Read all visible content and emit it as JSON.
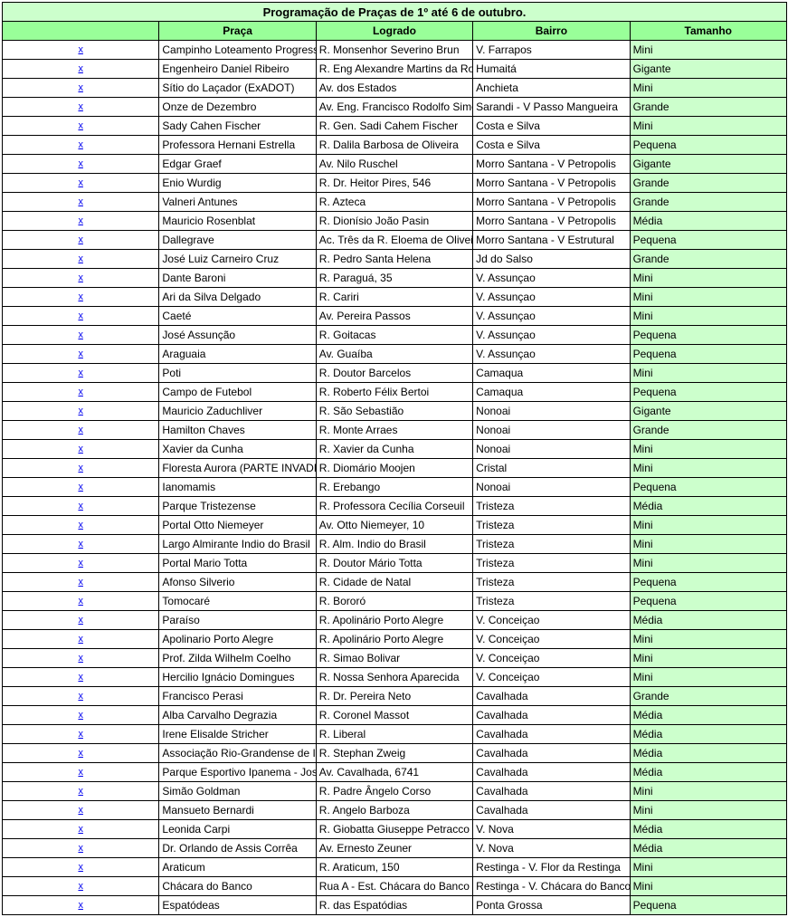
{
  "title": "Programação de Praças de 1º até 6 de outubro.",
  "columns": {
    "x": "",
    "praca": "Praça",
    "logrado": "Logrado",
    "bairro": "Bairro",
    "tamanho": "Tamanho"
  },
  "x_marker": "x",
  "colors": {
    "title_bg": "#ccffcc",
    "header_bg": "#99ff99",
    "tamanho_bg": "#ccffcc",
    "border": "#000000",
    "link": "#0000ee"
  },
  "rows": [
    {
      "praca": "Campinho Loteamento Progresso",
      "logrado": "R. Monsenhor Severino Brun",
      "bairro": "V. Farrapos",
      "tamanho": "Mini"
    },
    {
      "praca": "Engenheiro Daniel Ribeiro",
      "logrado": "R. Eng Alexandre Martins da Rosa",
      "bairro": "Humaitá",
      "tamanho": "Gigante"
    },
    {
      "praca": "Sítio do Laçador (ExADOT)",
      "logrado": "Av. dos Estados",
      "bairro": "Anchieta",
      "tamanho": "Mini"
    },
    {
      "praca": "Onze de Dezembro",
      "logrado": "Av. Eng. Francisco Rodolfo Simch",
      "bairro": "Sarandi - V Passo Mangueira",
      "tamanho": "Grande"
    },
    {
      "praca": "Sady Cahen Fischer",
      "logrado": "R. Gen. Sadi Cahem Fischer",
      "bairro": "Costa e Silva",
      "tamanho": "Mini"
    },
    {
      "praca": "Professora Hernani Estrella",
      "logrado": "R. Dalila Barbosa de Oliveira",
      "bairro": "Costa e Silva",
      "tamanho": "Pequena"
    },
    {
      "praca": "Edgar Graef",
      "logrado": "Av. Nilo Ruschel",
      "bairro": "Morro Santana - V Petropolis",
      "tamanho": "Gigante"
    },
    {
      "praca": "Enio Wurdig",
      "logrado": "R. Dr. Heitor Pires, 546",
      "bairro": "Morro Santana - V Petropolis",
      "tamanho": "Grande"
    },
    {
      "praca": "Valneri Antunes",
      "logrado": "R. Azteca",
      "bairro": "Morro Santana - V Petropolis",
      "tamanho": "Grande"
    },
    {
      "praca": "Mauricio Rosenblat",
      "logrado": "R. Dionísio João Pasin",
      "bairro": "Morro Santana - V Petropolis",
      "tamanho": "Média"
    },
    {
      "praca": "Dallegrave",
      "logrado": "Ac. Três da R. Eloema de Oliveira",
      "bairro": "Morro Santana - V Estrutural",
      "tamanho": "Pequena"
    },
    {
      "praca": "José Luiz Carneiro Cruz",
      "logrado": "R. Pedro Santa Helena",
      "bairro": "Jd do Salso",
      "tamanho": "Grande"
    },
    {
      "praca": "Dante Baroni",
      "logrado": "R. Paraguá, 35",
      "bairro": "V. Assunçao",
      "tamanho": "Mini"
    },
    {
      "praca": "Ari da Silva Delgado",
      "logrado": "R. Cariri",
      "bairro": "V. Assunçao",
      "tamanho": "Mini"
    },
    {
      "praca": "Caeté",
      "logrado": "Av. Pereira Passos",
      "bairro": "V. Assunçao",
      "tamanho": "Mini"
    },
    {
      "praca": "José Assunção",
      "logrado": "R. Goitacas",
      "bairro": "V. Assunçao",
      "tamanho": "Pequena"
    },
    {
      "praca": "Araguaia",
      "logrado": "Av. Guaíba",
      "bairro": "V. Assunçao",
      "tamanho": "Pequena"
    },
    {
      "praca": "Poti",
      "logrado": "R. Doutor Barcelos",
      "bairro": "Camaqua",
      "tamanho": "Mini"
    },
    {
      "praca": "Campo de Futebol",
      "logrado": "R. Roberto Félix Bertoi",
      "bairro": "Camaqua",
      "tamanho": "Pequena"
    },
    {
      "praca": "Mauricio Zaduchliver",
      "logrado": "R. São Sebastião",
      "bairro": "Nonoai",
      "tamanho": "Gigante"
    },
    {
      "praca": "Hamilton Chaves",
      "logrado": "R. Monte Arraes",
      "bairro": "Nonoai",
      "tamanho": "Grande"
    },
    {
      "praca": "Xavier da Cunha",
      "logrado": "R. Xavier da Cunha",
      "bairro": "Nonoai",
      "tamanho": "Mini"
    },
    {
      "praca": "Floresta Aurora (PARTE INVADIDA)",
      "logrado": "R. Diomário Moojen",
      "bairro": "Cristal",
      "tamanho": "Mini"
    },
    {
      "praca": "Ianomamis",
      "logrado": "R. Erebango",
      "bairro": "Nonoai",
      "tamanho": "Pequena"
    },
    {
      "praca": "Parque Tristezense",
      "logrado": "R. Professora Cecília Corseuil",
      "bairro": "Tristeza",
      "tamanho": "Média"
    },
    {
      "praca": "Portal Otto Niemeyer",
      "logrado": "Av. Otto Niemeyer, 10",
      "bairro": "Tristeza",
      "tamanho": "Mini"
    },
    {
      "praca": "Largo Almirante Indio do Brasil",
      "logrado": "R. Alm. Indio do Brasil",
      "bairro": "Tristeza",
      "tamanho": "Mini"
    },
    {
      "praca": "Portal Mario Totta",
      "logrado": "R. Doutor Mário Totta",
      "bairro": "Tristeza",
      "tamanho": "Mini"
    },
    {
      "praca": "Afonso Silverio",
      "logrado": "R. Cidade de Natal",
      "bairro": "Tristeza",
      "tamanho": "Pequena"
    },
    {
      "praca": "Tomocaré",
      "logrado": "R. Bororó",
      "bairro": "Tristeza",
      "tamanho": "Pequena"
    },
    {
      "praca": "Paraíso",
      "logrado": "R. Apolinário Porto Alegre",
      "bairro": "V. Conceiçao",
      "tamanho": "Média"
    },
    {
      "praca": "Apolinario Porto Alegre",
      "logrado": "R. Apolinário Porto Alegre",
      "bairro": "V. Conceiçao",
      "tamanho": "Mini"
    },
    {
      "praca": "Prof. Zilda Wilhelm Coelho",
      "logrado": "R. Simao Bolivar",
      "bairro": "V. Conceiçao",
      "tamanho": "Mini"
    },
    {
      "praca": "Hercilio Ignácio Domingues",
      "logrado": "R. Nossa Senhora Aparecida",
      "bairro": "V. Conceiçao",
      "tamanho": "Mini"
    },
    {
      "praca": "Francisco Perasi",
      "logrado": "R. Dr. Pereira Neto",
      "bairro": "Cavalhada",
      "tamanho": "Grande"
    },
    {
      "praca": "Alba Carvalho Degrazia",
      "logrado": "R. Coronel Massot",
      "bairro": "Cavalhada",
      "tamanho": "Média"
    },
    {
      "praca": "Irene Elisalde Stricher",
      "logrado": "R. Liberal",
      "bairro": "Cavalhada",
      "tamanho": "Média"
    },
    {
      "praca": "Associação Rio-Grandense de Imprensa - ARI",
      "logrado": "R. Stephan Zweig",
      "bairro": "Cavalhada",
      "tamanho": "Média"
    },
    {
      "praca": "Parque Esportivo Ipanema - José Trindade",
      "logrado": "Av. Cavalhada, 6741",
      "bairro": "Cavalhada",
      "tamanho": "Média"
    },
    {
      "praca": "Simão Goldman",
      "logrado": "R. Padre Ângelo Corso",
      "bairro": "Cavalhada",
      "tamanho": "Mini"
    },
    {
      "praca": "Mansueto Bernardi",
      "logrado": "R. Angelo Barboza",
      "bairro": "Cavalhada",
      "tamanho": "Mini"
    },
    {
      "praca": "Leonida Carpi",
      "logrado": "R. Giobatta Giuseppe Petracco",
      "bairro": "V. Nova",
      "tamanho": "Média"
    },
    {
      "praca": "Dr. Orlando de Assis Corrêa",
      "logrado": "Av. Ernesto Zeuner",
      "bairro": "V. Nova",
      "tamanho": "Média"
    },
    {
      "praca": "Araticum",
      "logrado": "R. Araticum, 150",
      "bairro": "Restinga - V. Flor da Restinga",
      "tamanho": "Mini"
    },
    {
      "praca": "Chácara do Banco",
      "logrado": "Rua A - Est. Chácara do Banco",
      "bairro": "Restinga - V. Chácara do Banco",
      "tamanho": "Mini"
    },
    {
      "praca": "Espatódeas",
      "logrado": "R. das Espatódias",
      "bairro": "Ponta Grossa",
      "tamanho": "Pequena"
    }
  ]
}
